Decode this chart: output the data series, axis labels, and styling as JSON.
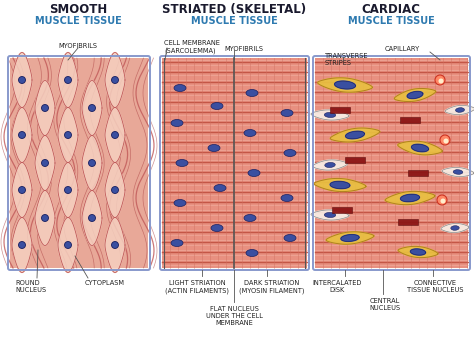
{
  "title1_line1": "SMOOTH",
  "title1_line2": "MUSCLE TISSUE",
  "title2_line1": "STRIATED (SKELETAL)",
  "title2_line2": "MUSCLE TISSUE",
  "title3_line1": "CARDIAC",
  "title3_line2": "MUSCLE TISSUE",
  "title_color": "#2e7ab0",
  "title_bold_color": "#1a1a2e",
  "bg_color": "#ffffff",
  "smooth_bg": "#e8a898",
  "striated_bg": "#e89080",
  "cardiac_bg": "#e89080",
  "nucleus_blue": "#3a4fa0",
  "nucleus_edge": "#1a2060",
  "intercalated_color": "#8b1515",
  "connective_color": "#e8c040",
  "connective_edge": "#b08020",
  "panel_border": "#8899cc",
  "fiber_dark": "#c05050",
  "fiber_medium": "#d07060",
  "label_fs": 4.8,
  "title_fs1": 8.5,
  "title_fs2": 7.0
}
